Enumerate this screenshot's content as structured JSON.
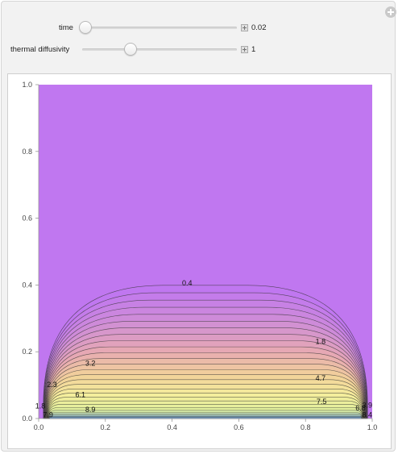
{
  "controls": {
    "time": {
      "label": "time",
      "value": "0.02"
    },
    "diffusivity": {
      "label": "thermal diffusivity",
      "value": "1"
    }
  },
  "plot": {
    "x_ticks": [
      "0.0",
      "0.2",
      "0.4",
      "0.6",
      "0.8",
      "1.0"
    ],
    "y_ticks": [
      "0.0",
      "0.2",
      "0.4",
      "0.6",
      "0.8",
      "1.0"
    ],
    "contour_labels": [
      "0.4",
      "1.8",
      "3.2",
      "4.7",
      "2.3",
      "6.1",
      "7.5",
      "8.9",
      "1.8",
      "7.9",
      "3.9",
      "6.8",
      "8.4"
    ]
  },
  "chart_data": {
    "type": "contour",
    "title": "",
    "xlabel": "",
    "ylabel": "",
    "xlim": [
      0,
      1
    ],
    "ylim": [
      0,
      1
    ],
    "contour_levels_labeled": [
      0.4,
      1.8,
      2.3,
      3.2,
      3.9,
      4.7,
      6.1,
      6.8,
      7.5,
      7.9,
      8.4,
      8.9
    ],
    "background_color": "#c077f0",
    "colormap": [
      "#c077f0",
      "#d08ed6",
      "#e6a8b4",
      "#f2d29a",
      "#f4ee9c",
      "#dfee9c",
      "#7ab0e8"
    ]
  }
}
